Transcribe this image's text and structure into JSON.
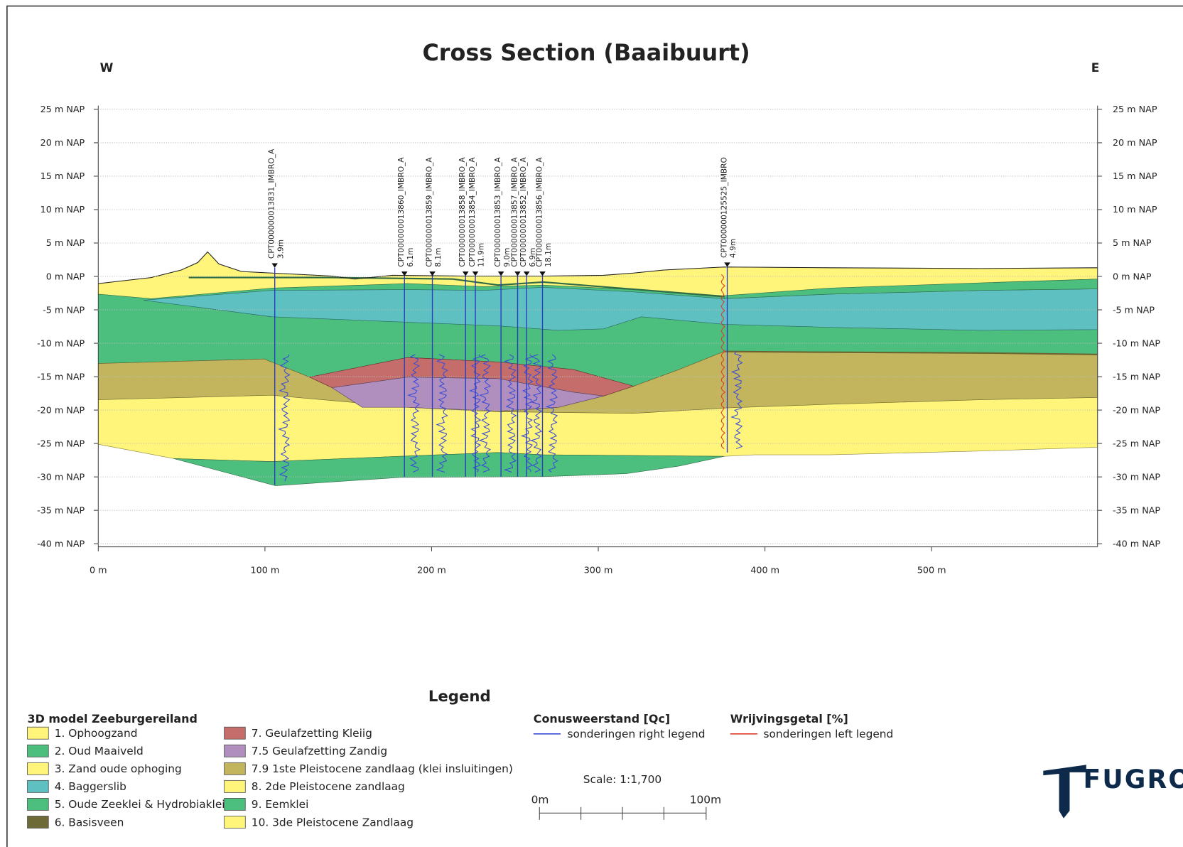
{
  "header": {
    "title": "Cross Section (Baaibuurt)",
    "west": "W",
    "east": "E"
  },
  "y_axis": {
    "ticks": [
      "25 m NAP",
      "20 m NAP",
      "15 m NAP",
      "10 m NAP",
      "5 m NAP",
      "0 m NAP",
      "-5 m NAP",
      "-10 m NAP",
      "-15 m NAP",
      "-20 m NAP",
      "-25 m NAP",
      "-30 m NAP",
      "-35 m NAP",
      "-40 m NAP"
    ]
  },
  "x_axis": {
    "ticks": [
      "0 m",
      "100 m",
      "200 m",
      "300 m",
      "400 m",
      "500 m"
    ]
  },
  "cpts": [
    {
      "label": "CPT000000013831_IMBRO_A",
      "depth": "3.9m"
    },
    {
      "label": "CPT000000013860_IMBRO_A",
      "depth": "6.1m"
    },
    {
      "label": "CPT000000013859_IMBRO_A",
      "depth": "8.1m"
    },
    {
      "label": "CPT000000013858_IMBRO_A"
    },
    {
      "label": "CPT000000013854_IMBRO_A",
      "depth": "11.9m"
    },
    {
      "label": "CPT000000013853_IMBRO_A",
      "depth": "9.0m"
    },
    {
      "label": "CPT000000013857_IMBRO_A"
    },
    {
      "label": "CPT000000013852_IMBRO_A",
      "depth": "6.9m"
    },
    {
      "label": "CPT000000013856_IMBRO_A",
      "depth": "18.1m"
    },
    {
      "label": "CPT000000125525_IMBRO",
      "depth": "4.9m"
    }
  ],
  "legend": {
    "title": "Legend",
    "model_title": "3D model Zeeburgereiland",
    "items": [
      "1. Ophoogzand",
      "2. Oud Maaiveld",
      "3. Zand oude ophoging",
      "4. Baggerslib",
      "5. Oude Zeeklei & Hydrobiaklei",
      "6. Basisveen",
      "7. Geulafzetting Kleiig",
      "7.5 Geulafzetting Zandig",
      "7.9 1ste Pleistocene zandlaag (klei insluitingen)",
      "8. 2de Pleistocene zandlaag",
      "9. Eemklei",
      "10. 3de Pleistocene Zandlaag"
    ],
    "qc_title": "Conusweerstand [Qc]",
    "qc_label": "sonderingen right legend",
    "fr_title": "Wrijvingsgetal [%]",
    "fr_label": "sonderingen left legend",
    "scale": "Scale: 1:1,700",
    "scale_start": "0m",
    "scale_end": "100m"
  },
  "logo": "FUGRO"
}
